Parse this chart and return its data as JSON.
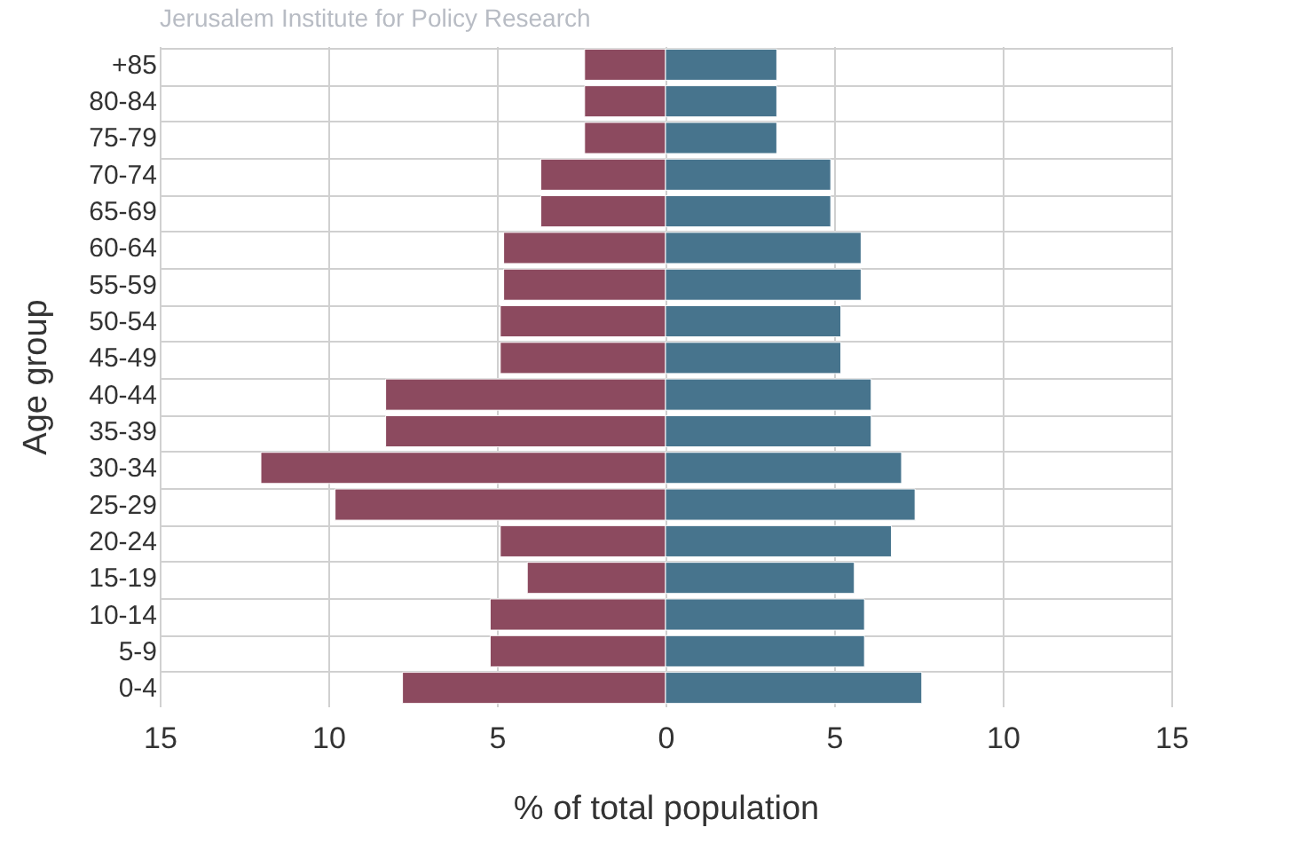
{
  "chart_data": {
    "type": "bar",
    "orientation": "horizontal",
    "annotations": [
      "Jerusalem Institute for Policy Research"
    ],
    "xlabel": "% of total population",
    "ylabel": "Age group",
    "categories": [
      "+85",
      "80-84",
      "75-79",
      "70-74",
      "65-69",
      "60-64",
      "55-59",
      "50-54",
      "45-49",
      "40-44",
      "35-39",
      "30-34",
      "25-29",
      "20-24",
      "15-19",
      "10-14",
      "5-9",
      "0-4"
    ],
    "series": [
      {
        "color": "#8c4a5f",
        "values": [
          -2.4,
          -2.4,
          -2.4,
          -3.7,
          -3.7,
          -4.8,
          -4.8,
          -4.9,
          -4.9,
          -8.3,
          -8.3,
          -12.0,
          -9.8,
          -4.9,
          -4.1,
          -5.2,
          -5.2,
          -7.8
        ]
      },
      {
        "color": "#47748d",
        "values": [
          3.3,
          3.3,
          3.3,
          4.9,
          4.9,
          5.8,
          5.8,
          5.2,
          5.2,
          6.1,
          6.1,
          7.0,
          7.4,
          6.7,
          5.6,
          5.9,
          5.9,
          7.6
        ]
      }
    ],
    "xlim": [
      -15,
      15
    ],
    "xticks": [
      {
        "value": -15,
        "label": "15"
      },
      {
        "value": -10,
        "label": "10"
      },
      {
        "value": -5,
        "label": "5"
      },
      0,
      5,
      10,
      15
    ],
    "stacked": true,
    "grid": true
  }
}
